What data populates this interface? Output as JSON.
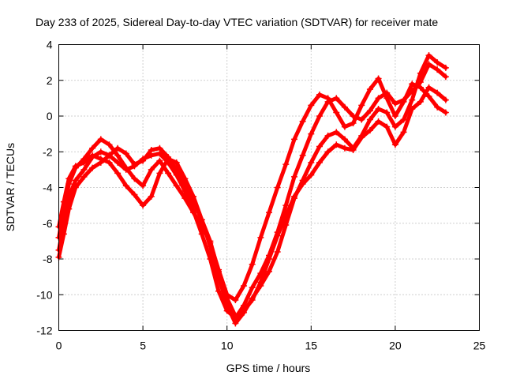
{
  "chart_data": {
    "type": "scatter",
    "title": "Day 233 of 2025, Sidereal Day-to-day VTEC variation (SDTVAR) for receiver mate",
    "xlabel": "GPS time / hours",
    "ylabel": "SDTVAR / TECUs",
    "xlim": [
      0,
      25
    ],
    "ylim": [
      -12,
      4
    ],
    "xticks": [
      0,
      5,
      10,
      15,
      20,
      25
    ],
    "yticks": [
      -12,
      -10,
      -8,
      -6,
      -4,
      -2,
      0,
      2,
      4
    ],
    "grid": true,
    "color": "#ff0000",
    "marker": "plus",
    "series": [
      {
        "x": [
          0.0,
          0.3,
          0.6,
          1.0,
          1.5,
          2.0,
          2.5,
          3.0,
          3.5,
          4.0,
          4.5,
          5.0,
          5.5,
          6.0,
          6.5,
          7.0,
          7.5,
          8.0,
          8.5,
          9.0,
          9.5,
          10.0,
          10.5,
          11.0,
          11.5,
          12.0,
          12.5,
          13.0,
          13.5,
          14.0,
          14.5,
          15.0,
          15.5,
          16.0,
          16.5,
          17.0,
          17.5,
          18.0,
          18.5,
          19.0,
          19.5,
          20.0,
          20.5,
          21.0,
          21.5,
          22.0,
          22.5,
          23.0
        ],
        "y": [
          -7.5,
          -6.0,
          -4.5,
          -3.6,
          -3.0,
          -2.3,
          -2.0,
          -2.2,
          -2.6,
          -3.0,
          -2.8,
          -2.4,
          -2.2,
          -2.1,
          -2.6,
          -3.3,
          -4.2,
          -5.3,
          -6.6,
          -8.0,
          -9.8,
          -10.9,
          -11.3,
          -10.6,
          -9.6,
          -8.8,
          -7.8,
          -6.5,
          -5.0,
          -3.4,
          -2.2,
          -1.0,
          0.0,
          0.8,
          1.0,
          0.5,
          0.0,
          -0.2,
          0.3,
          1.0,
          1.3,
          0.7,
          0.9,
          1.4,
          1.9,
          2.9,
          2.6,
          2.2
        ]
      },
      {
        "x": [
          0.0,
          0.3,
          0.6,
          1.0,
          1.5,
          2.0,
          2.5,
          3.0,
          3.5,
          4.0,
          4.5,
          5.0,
          5.5,
          6.0,
          6.5,
          7.0,
          7.5,
          8.0,
          8.5,
          9.0,
          9.5,
          10.0,
          10.5,
          11.0,
          11.5,
          12.0,
          12.5,
          13.0,
          13.5,
          14.0,
          14.5,
          15.0,
          15.5,
          16.0,
          16.5,
          17.0,
          17.5,
          18.0,
          18.5,
          19.0,
          19.5,
          20.0,
          20.5,
          21.0,
          21.5,
          22.0,
          22.5,
          23.0
        ],
        "y": [
          -6.8,
          -5.2,
          -3.8,
          -2.9,
          -2.4,
          -1.8,
          -1.3,
          -1.6,
          -2.2,
          -2.9,
          -3.5,
          -3.9,
          -3.0,
          -2.5,
          -3.2,
          -3.9,
          -4.6,
          -5.4,
          -6.1,
          -7.1,
          -8.6,
          -10.0,
          -10.3,
          -9.5,
          -8.3,
          -6.8,
          -5.4,
          -4.0,
          -2.7,
          -1.3,
          -0.3,
          0.6,
          1.2,
          1.0,
          0.2,
          -0.6,
          -0.4,
          0.6,
          1.5,
          2.1,
          1.0,
          0.0,
          0.8,
          1.8,
          1.6,
          1.1,
          0.5,
          0.2
        ]
      },
      {
        "x": [
          0.0,
          0.3,
          0.6,
          1.0,
          1.5,
          2.0,
          2.5,
          3.0,
          3.5,
          4.0,
          4.5,
          5.0,
          5.5,
          6.0,
          6.5,
          7.0,
          7.5,
          8.0,
          8.5,
          9.0,
          9.5,
          10.0,
          10.5,
          11.0,
          11.5,
          12.0,
          12.5,
          13.0,
          13.5,
          14.0,
          14.5,
          15.0,
          15.5,
          16.0,
          16.5,
          17.0,
          17.5,
          18.0,
          18.5,
          19.0,
          19.5,
          20.0,
          20.5,
          21.0,
          21.5,
          22.0,
          22.5,
          23.0
        ],
        "y": [
          -7.9,
          -6.6,
          -5.2,
          -4.0,
          -3.4,
          -2.9,
          -2.6,
          -2.2,
          -1.8,
          -2.1,
          -2.7,
          -2.5,
          -1.9,
          -1.8,
          -2.3,
          -3.0,
          -3.9,
          -4.8,
          -5.8,
          -7.3,
          -9.0,
          -10.6,
          -11.6,
          -11.0,
          -10.2,
          -9.5,
          -8.7,
          -7.6,
          -6.1,
          -4.6,
          -3.6,
          -2.6,
          -1.7,
          -1.1,
          -0.9,
          -1.3,
          -1.8,
          -1.1,
          -0.2,
          0.4,
          0.2,
          -0.6,
          -0.2,
          0.9,
          2.4,
          3.4,
          3.0,
          2.7
        ]
      },
      {
        "x": [
          0.0,
          0.3,
          0.6,
          1.0,
          1.5,
          2.0,
          2.5,
          3.0,
          3.5,
          4.0,
          4.5,
          5.0,
          5.5,
          6.0,
          6.5,
          7.0,
          7.5,
          8.0,
          8.5,
          9.0,
          9.5,
          10.0,
          10.5,
          11.0,
          11.5,
          12.0,
          12.5,
          13.0,
          13.5,
          14.0,
          14.5,
          15.0,
          15.5,
          16.0,
          16.5,
          17.0,
          17.5,
          18.0,
          18.5,
          19.0,
          19.5,
          20.0,
          20.5,
          21.0,
          21.5,
          22.0,
          22.5,
          23.0
        ],
        "y": [
          -6.2,
          -4.8,
          -3.5,
          -2.8,
          -2.6,
          -2.2,
          -2.4,
          -2.6,
          -3.2,
          -3.9,
          -4.4,
          -5.0,
          -4.5,
          -3.2,
          -2.4,
          -2.6,
          -3.5,
          -4.5,
          -5.8,
          -7.0,
          -8.7,
          -10.2,
          -11.2,
          -10.9,
          -10.3,
          -9.3,
          -8.0,
          -6.7,
          -5.6,
          -4.5,
          -3.8,
          -3.3,
          -2.6,
          -2.0,
          -1.6,
          -1.8,
          -1.9,
          -1.2,
          -0.8,
          -0.3,
          -0.6,
          -1.6,
          -0.9,
          0.4,
          0.8,
          1.6,
          1.3,
          0.9
        ]
      }
    ]
  }
}
